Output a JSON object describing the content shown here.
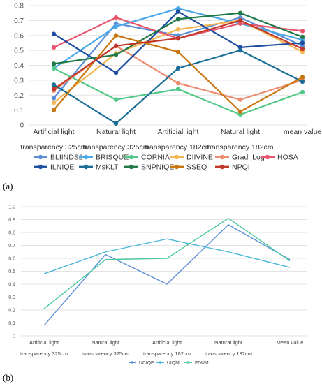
{
  "panels": [
    {
      "label": "(a)"
    },
    {
      "label": "(b)"
    }
  ],
  "chart_data": [
    {
      "type": "line",
      "title": "",
      "xlabel": "",
      "ylabel": "",
      "categories": [
        [
          "Artificial light",
          "transparency 325cm"
        ],
        [
          "Natural light",
          "transparency 325cm"
        ],
        [
          "Artificial light",
          "transparency 182cm"
        ],
        [
          "Natural light",
          "transparency 182cm"
        ],
        [
          "mean value"
        ]
      ],
      "ylim": [
        0,
        0.8
      ],
      "yticks": [
        0,
        0.1,
        0.2,
        0.3,
        0.4,
        0.5,
        0.6,
        0.7,
        0.8
      ],
      "ytick_decimals": 1,
      "grid": true,
      "legend": "bottom",
      "legend_columns": 6,
      "series": [
        {
          "name": "BLIINDS2",
          "color": "#5b8fd6",
          "values": [
            0.18,
            0.68,
            0.6,
            0.72,
            0.53
          ]
        },
        {
          "name": "BRISQUE",
          "color": "#4aa8e8",
          "values": [
            0.38,
            0.66,
            0.78,
            0.68,
            0.57
          ]
        },
        {
          "name": "CORNIA",
          "color": "#55c98a",
          "values": [
            0.38,
            0.17,
            0.24,
            0.07,
            0.22
          ]
        },
        {
          "name": "DIIVINE",
          "color": "#f5b553",
          "values": [
            0.15,
            0.48,
            0.64,
            0.7,
            0.49
          ]
        },
        {
          "name": "Grad_Log",
          "color": "#eb8c70",
          "values": [
            0.23,
            0.53,
            0.28,
            0.17,
            0.3
          ]
        },
        {
          "name": "HOSA",
          "color": "#e8566e",
          "values": [
            0.52,
            0.72,
            0.58,
            0.68,
            0.63
          ]
        },
        {
          "name": "ILNIQE",
          "color": "#1f4fa3",
          "values": [
            0.61,
            0.35,
            0.76,
            0.52,
            0.55
          ]
        },
        {
          "name": "MsKLT",
          "color": "#1a6e96",
          "values": [
            0.27,
            0.01,
            0.38,
            0.5,
            0.29
          ]
        },
        {
          "name": "SNPNIQE",
          "color": "#1f7a48",
          "values": [
            0.41,
            0.47,
            0.71,
            0.75,
            0.59
          ]
        },
        {
          "name": "SSEQ",
          "color": "#c8760f",
          "values": [
            0.1,
            0.6,
            0.49,
            0.09,
            0.32
          ]
        },
        {
          "name": "NPQI",
          "color": "#c0392b",
          "values": [
            0.24,
            0.53,
            0.58,
            0.7,
            0.51
          ]
        }
      ]
    },
    {
      "type": "line",
      "title": "",
      "xlabel": "",
      "ylabel": "",
      "categories": [
        [
          "Artificial light",
          "transparency 325cm"
        ],
        [
          "Natural light",
          "transparency 325cm"
        ],
        [
          "Artificial light",
          "transparency 182cm"
        ],
        [
          "Natural light",
          "transparency 182cm"
        ],
        [
          "Mean value"
        ]
      ],
      "ylim": [
        0,
        1
      ],
      "yticks": [
        0,
        0.1,
        0.2,
        0.3,
        0.4,
        0.5,
        0.6,
        0.7,
        0.8,
        0.9,
        1
      ],
      "ytick_decimals": 1,
      "grid": true,
      "legend": "bottom",
      "legend_columns": 3,
      "series": [
        {
          "name": "UCIQE",
          "color": "#5b8fd6",
          "values": [
            0.08,
            0.63,
            0.4,
            0.86,
            0.59
          ]
        },
        {
          "name": "UIQM",
          "color": "#4ab5d8",
          "values": [
            0.48,
            0.65,
            0.75,
            0.65,
            0.53
          ]
        },
        {
          "name": "FDUM",
          "color": "#4cc9a0",
          "values": [
            0.21,
            0.59,
            0.6,
            0.91,
            0.58
          ]
        }
      ]
    }
  ]
}
